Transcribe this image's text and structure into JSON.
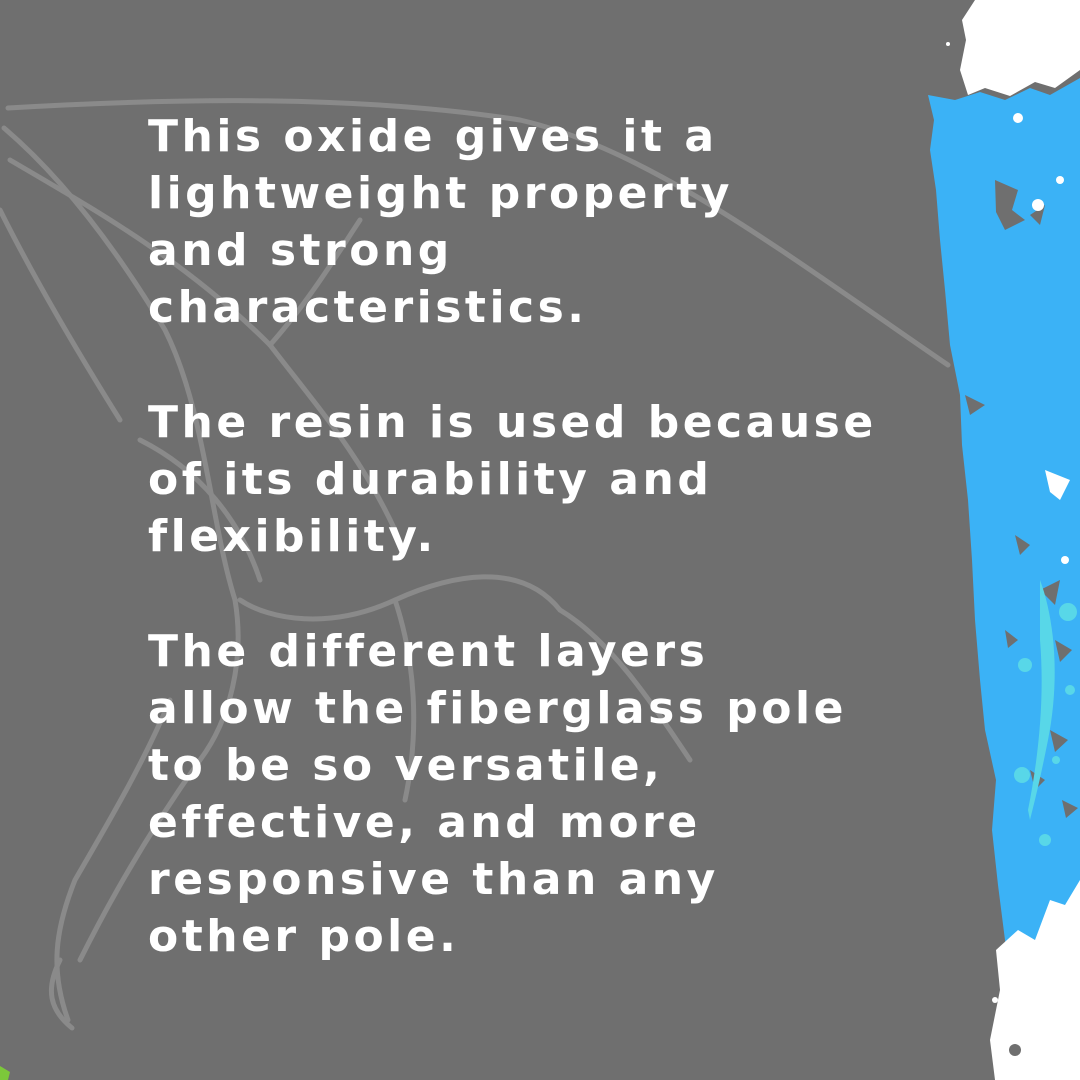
{
  "slide": {
    "paragraphs": [
      {
        "lines": [
          "This oxide gives it a",
          "lightweight property",
          "and strong",
          "characteristics."
        ]
      },
      {
        "lines": [
          "The resin is used because",
          "of its durability and",
          "flexibility."
        ]
      },
      {
        "lines": [
          "The different layers",
          "allow the fiberglass pole",
          "to be so versatile,",
          "effective, and more",
          "responsive than any",
          "other pole."
        ]
      }
    ],
    "colors": {
      "background": "#6f6f6f",
      "text": "#ffffff",
      "sketch": "#8d8d8d",
      "paint_blue": "#3bb2f6",
      "paint_white": "#ffffff",
      "splash_teal": "#58d7e8",
      "accent_green": "#7cc83a"
    }
  }
}
